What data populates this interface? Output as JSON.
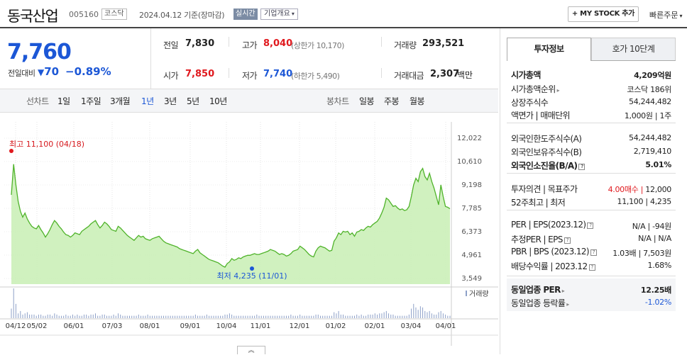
{
  "header": {
    "company": "동국산업",
    "code": "005160",
    "market": "코스닥",
    "date_text": "2024.04.12  기준(장마감)",
    "realtime": "실시간",
    "corp_info": "기업개요",
    "mystock_button": "+ MY STOCK 추가",
    "quick_order": "빠른주문"
  },
  "summary": {
    "price": "7,760",
    "change_label": "전일대비",
    "change_value": "70",
    "change_pct": "−0.89%",
    "prev_label": "전일",
    "prev": "7,830",
    "open_label": "시가",
    "open": "7,850",
    "high_label": "고가",
    "high": "8,040",
    "upper_limit": "(상한가 10,170)",
    "low_label": "저가",
    "low": "7,740",
    "lower_limit": "(하한가 5,490)",
    "volume_label": "거래량",
    "volume": "293,521",
    "amount_label": "거래대금",
    "amount": "2,307",
    "amount_unit": "백만"
  },
  "chart_tabs": {
    "line_head": "선차트",
    "line": [
      "1일",
      "1주일",
      "3개월",
      "1년",
      "3년",
      "5년",
      "10년"
    ],
    "active": "1년",
    "candle_head": "봉차트",
    "candle": [
      "일봉",
      "주봉",
      "월봉"
    ]
  },
  "chart_data": {
    "type": "area",
    "y_ticks": [
      "12,022",
      "10,610",
      "9,198",
      "7,785",
      "6,373",
      "4,961",
      "3,549"
    ],
    "ylim": [
      3549,
      12022
    ],
    "x_ticks": [
      "04/12",
      "05/02",
      "06/01",
      "07/03",
      "08/01",
      "09/01",
      "10/04",
      "11/01",
      "12/01",
      "01/02",
      "02/01",
      "03/04",
      "04/01"
    ],
    "series": [
      {
        "values": [
          8600,
          10450,
          9200,
          8200,
          7600,
          7250,
          7500,
          7150,
          6900,
          6700,
          6600,
          6550,
          6750,
          6500,
          6300,
          6050,
          6250,
          6500,
          6800,
          7050,
          6900,
          6700,
          6550,
          6350,
          6200,
          6150,
          6050,
          6150,
          6300,
          6250,
          6200,
          6400,
          6500,
          6600,
          6700,
          6850,
          6950,
          7050,
          6800,
          6600,
          6750,
          6950,
          6850,
          6700,
          6500,
          6450,
          6400,
          6700,
          6600,
          6450,
          6300,
          6150,
          6050,
          5950,
          5850,
          6000,
          6150,
          6050,
          6100,
          5950,
          5900,
          5850,
          5950,
          6000,
          6050,
          6100,
          5950,
          5800,
          5700,
          5650,
          5600,
          5550,
          5500,
          5450,
          5350,
          5300,
          5250,
          5200,
          5150,
          5100,
          5050,
          5200,
          5300,
          5100,
          5000,
          4900,
          4800,
          4700,
          4650,
          4600,
          4550,
          4500,
          4400,
          4300,
          4235,
          4450,
          4550,
          4750,
          4650,
          4700,
          4800,
          4750,
          4850,
          4900,
          4950,
          4950,
          5000,
          5050,
          5000,
          5000,
          5050,
          5100,
          5150,
          5200,
          5300,
          5250,
          5200,
          5100,
          5000,
          5050,
          5000,
          4900,
          4950,
          5050,
          5200,
          5250,
          5300,
          5500,
          5400,
          5300,
          5150,
          5000,
          4900,
          4850,
          5200,
          5400,
          5500,
          5450,
          5400,
          5300,
          5200,
          5250,
          5800,
          6000,
          6300,
          6200,
          6400,
          6350,
          6400,
          6200,
          6300,
          6100,
          6350,
          6400,
          6500,
          6450,
          6600,
          6700,
          6650,
          6800,
          6900,
          7000,
          7200,
          7500,
          7850,
          8400,
          8300,
          8100,
          7900,
          7950,
          7800,
          7700,
          7750,
          7650,
          7700,
          7900,
          8500,
          9200,
          9600,
          9400,
          10000,
          10200,
          9700,
          9500,
          9900,
          9400,
          9000,
          8500,
          8000,
          9200,
          8500,
          7900,
          7850,
          7760
        ],
        "volume": [
          8,
          25,
          12,
          4,
          6,
          3,
          4,
          5,
          3,
          3,
          3,
          2,
          3,
          3,
          2,
          2,
          3,
          3,
          2,
          4,
          3,
          2,
          2,
          2,
          3,
          2,
          2,
          3,
          2,
          3,
          2,
          2,
          3,
          3,
          2,
          3,
          3,
          4,
          2,
          2,
          3,
          3,
          2,
          2,
          2,
          3,
          2,
          4,
          3,
          2,
          2,
          2,
          2,
          2,
          2,
          2,
          3,
          2,
          2,
          2,
          3,
          2,
          2,
          2,
          2,
          2,
          2,
          2,
          2,
          2,
          2,
          2,
          2,
          2,
          2,
          2,
          2,
          2,
          2,
          2,
          2,
          3,
          2,
          2,
          2,
          2,
          3,
          2,
          2,
          2,
          2,
          2,
          2,
          2,
          3,
          3,
          4,
          3,
          2,
          2,
          2,
          2,
          2,
          2,
          2,
          2,
          2,
          2,
          3,
          2,
          2,
          2,
          2,
          2,
          2,
          2,
          2,
          2,
          2,
          2,
          2,
          2,
          2,
          3,
          2,
          2,
          2,
          3,
          2,
          2,
          2,
          2,
          2,
          2,
          3,
          3,
          2,
          2,
          2,
          2,
          2,
          2,
          5,
          4,
          6,
          3,
          3,
          2,
          2,
          2,
          2,
          2,
          3,
          2,
          3,
          2,
          2,
          3,
          3,
          3,
          4,
          3,
          4,
          4,
          5,
          6,
          4,
          3,
          3,
          2,
          2,
          2,
          2,
          2,
          2,
          3,
          8,
          12,
          9,
          7,
          10,
          9,
          6,
          5,
          6,
          4,
          3,
          3,
          5,
          6,
          4,
          3,
          2,
          2
        ]
      }
    ],
    "high_label": "최고 11,100 (04/18)",
    "low_label": "최저 4,235 (11/01)",
    "volume_legend": "거래량"
  },
  "expand_label": "︽",
  "right_panel": {
    "tabs": [
      "투자정보",
      "호가 10단계"
    ],
    "rows": [
      {
        "label": "시가총액",
        "value": "4,209억원",
        "bold": true
      },
      {
        "label": "시가총액순위",
        "value": "코스닥 186위",
        "tri": true
      },
      {
        "label": "상장주식수",
        "value": "54,244,482"
      },
      {
        "label": "액면가 | 매매단위",
        "value": "1,000원 | 1주"
      },
      {
        "label": "외국인한도주식수(A)",
        "value": "54,244,482"
      },
      {
        "label": "외국인보유주식수(B)",
        "value": "2,719,410"
      },
      {
        "label": "외국인소진율(B/A)",
        "value": "5.01%",
        "bold": true,
        "ico": true
      },
      {
        "label": "투자의견 | 목표주가",
        "value_up": "4.00매수",
        "value": "12,000"
      },
      {
        "label": "52주최고 | 최저",
        "value": "11,100 | 4,235"
      },
      {
        "label": "PER | EPS(2023.12)",
        "value": "N/A | -94원",
        "ico": true
      },
      {
        "label": "추정PER | EPS",
        "value": "N/A | N/A",
        "ico": true
      },
      {
        "label": "PBR | BPS (2023.12)",
        "value": "1.03배 | 7,503원",
        "ico": true
      },
      {
        "label": "배당수익률 | 2023.12",
        "value": "1.68%",
        "ico": true
      },
      {
        "label": "동일업종 PER",
        "value": "12.25배",
        "bold": true,
        "tri": true
      },
      {
        "label": "동일업종 등락률",
        "value": "-1.02%",
        "down": true,
        "tri": true
      }
    ]
  },
  "colors": {
    "up": "#e0191e",
    "down": "#1c57d6",
    "area_fill": "#c8efb4",
    "area_line": "#4fb32a"
  }
}
